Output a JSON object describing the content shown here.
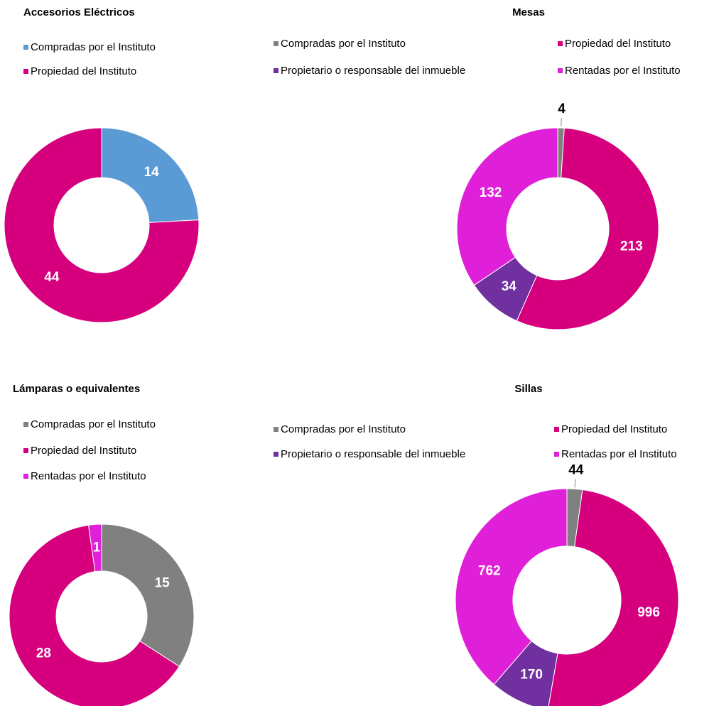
{
  "chart_data": [
    {
      "type": "donut",
      "title": "Accesorios Eléctricos",
      "categories": [
        "Compradas por el Instituto",
        "Propiedad del Instituto"
      ],
      "values": [
        14,
        44
      ],
      "colors": [
        "#5b9bd5",
        "#d6007f"
      ]
    },
    {
      "type": "donut",
      "title": "Mesas",
      "categories": [
        "Compradas por el Instituto",
        "Propiedad del Instituto",
        "Propietario o responsable del inmueble",
        "Rentadas por el Instituto"
      ],
      "values": [
        4,
        213,
        34,
        132
      ],
      "colors": [
        "#808080",
        "#d6007f",
        "#7030a0",
        "#e020d8"
      ]
    },
    {
      "type": "donut",
      "title": "Lámparas o equivalentes",
      "categories": [
        "Compradas por el Instituto",
        "Propiedad del Instituto",
        "Rentadas por el Instituto"
      ],
      "values": [
        15,
        28,
        1
      ],
      "colors": [
        "#808080",
        "#d6007f",
        "#e020d8"
      ]
    },
    {
      "type": "donut",
      "title": "Sillas",
      "categories": [
        "Compradas por el Instituto",
        "Propiedad del Instituto",
        "Propietario o responsable del inmueble",
        "Rentadas por el Instituto"
      ],
      "values": [
        44,
        996,
        170,
        762
      ],
      "colors": [
        "#808080",
        "#d6007f",
        "#7030a0",
        "#e020d8"
      ]
    }
  ]
}
